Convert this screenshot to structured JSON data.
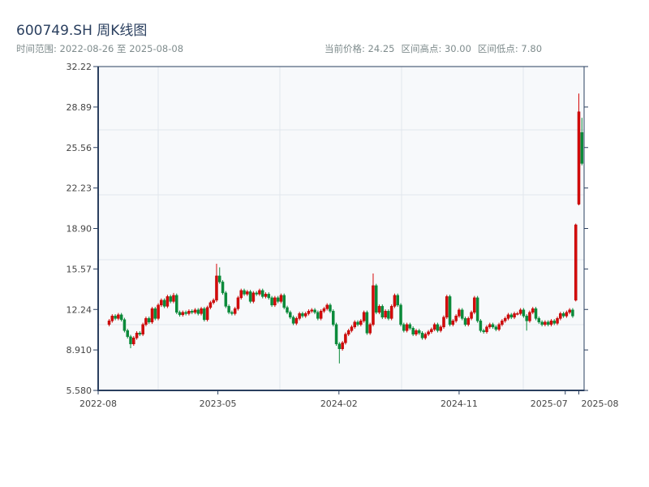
{
  "header": {
    "title": "600749.SH 周K线图",
    "range_label": "时间范围: ",
    "range_start": "2022-08-26",
    "range_sep": " 至 ",
    "range_end": "2025-08-08",
    "current_price": "当前价格: 24.25",
    "range_high": "区间高点: 30.00",
    "range_low": "区间低点: 7.80"
  },
  "chart_data": {
    "type": "candlestick",
    "title": "600749.SH 周K线图",
    "frequency": "weekly",
    "x_range": [
      "2022-08-26",
      "2025-08-08"
    ],
    "ylim": [
      5.58,
      32.22
    ],
    "y_ticks": [
      "5.580",
      "8.910",
      "12.24",
      "15.57",
      "18.90",
      "22.23",
      "25.56",
      "28.89",
      "32.22"
    ],
    "x_ticks": [
      "2022-08",
      "2023-05",
      "2024-02",
      "2024-11",
      "2025-07",
      "2025-08"
    ],
    "x_tick_dates": [
      "2022-08-01",
      "2023-05-01",
      "2024-02-01",
      "2024-11-01",
      "2025-07-01",
      "2025-08-01"
    ],
    "grid": true,
    "colors": {
      "up": "#d60a0a",
      "down": "#0b8a3a",
      "axis": "#2a3f5f",
      "grid": "#e2e6ec",
      "plot_bg": "#f7f9fb"
    },
    "ohlc_columns": [
      "open",
      "high",
      "low",
      "close"
    ],
    "candles": [
      [
        11.0,
        11.45,
        10.85,
        11.3
      ],
      [
        11.3,
        11.85,
        11.15,
        11.7
      ],
      [
        11.7,
        11.85,
        11.35,
        11.5
      ],
      [
        11.5,
        11.95,
        11.35,
        11.8
      ],
      [
        11.8,
        11.95,
        11.25,
        11.4
      ],
      [
        11.4,
        11.55,
        10.35,
        10.5
      ],
      [
        10.5,
        10.65,
        9.85,
        10.0
      ],
      [
        10.0,
        10.15,
        9.05,
        9.4
      ],
      [
        9.4,
        10.05,
        9.25,
        9.9
      ],
      [
        9.9,
        10.45,
        9.75,
        10.3
      ],
      [
        10.3,
        10.45,
        10.05,
        10.2
      ],
      [
        10.2,
        11.15,
        10.05,
        11.0
      ],
      [
        11.0,
        11.65,
        10.85,
        11.5
      ],
      [
        11.5,
        11.65,
        11.05,
        11.2
      ],
      [
        11.2,
        12.45,
        11.05,
        12.3
      ],
      [
        12.3,
        12.45,
        11.35,
        11.5
      ],
      [
        11.5,
        12.75,
        11.35,
        12.6
      ],
      [
        12.6,
        13.15,
        12.45,
        13.0
      ],
      [
        13.0,
        13.15,
        12.35,
        12.5
      ],
      [
        12.5,
        13.45,
        12.35,
        13.3
      ],
      [
        13.3,
        13.45,
        12.75,
        12.9
      ],
      [
        12.9,
        13.6,
        12.75,
        13.4
      ],
      [
        13.4,
        13.55,
        11.85,
        12.0
      ],
      [
        12.0,
        12.15,
        11.65,
        11.8
      ],
      [
        11.8,
        12.15,
        11.65,
        12.0
      ],
      [
        12.0,
        12.15,
        11.75,
        11.9
      ],
      [
        11.9,
        12.25,
        11.75,
        12.1
      ],
      [
        12.1,
        12.25,
        11.85,
        12.0
      ],
      [
        12.0,
        12.35,
        11.85,
        12.2
      ],
      [
        12.2,
        12.35,
        11.75,
        11.9
      ],
      [
        11.9,
        12.45,
        11.75,
        12.3
      ],
      [
        12.3,
        12.45,
        11.25,
        11.4
      ],
      [
        11.4,
        12.55,
        11.25,
        12.4
      ],
      [
        12.4,
        12.95,
        12.25,
        12.8
      ],
      [
        12.8,
        13.15,
        12.65,
        13.0
      ],
      [
        13.0,
        16.0,
        12.85,
        15.0
      ],
      [
        15.0,
        15.7,
        14.35,
        14.5
      ],
      [
        14.5,
        14.65,
        13.45,
        13.6
      ],
      [
        13.6,
        13.75,
        12.35,
        12.5
      ],
      [
        12.5,
        12.65,
        11.85,
        12.0
      ],
      [
        12.0,
        12.15,
        11.75,
        11.9
      ],
      [
        11.9,
        12.45,
        11.75,
        12.3
      ],
      [
        12.3,
        13.35,
        12.15,
        13.2
      ],
      [
        13.2,
        13.95,
        13.05,
        13.8
      ],
      [
        13.8,
        13.95,
        13.35,
        13.5
      ],
      [
        13.5,
        13.85,
        13.35,
        13.7
      ],
      [
        13.7,
        13.85,
        12.75,
        12.9
      ],
      [
        12.9,
        13.75,
        12.75,
        13.6
      ],
      [
        13.6,
        13.75,
        13.35,
        13.5
      ],
      [
        13.5,
        13.95,
        13.35,
        13.8
      ],
      [
        13.8,
        13.95,
        13.15,
        13.3
      ],
      [
        13.3,
        13.65,
        13.15,
        13.5
      ],
      [
        13.5,
        13.65,
        13.05,
        13.2
      ],
      [
        13.2,
        13.35,
        12.45,
        12.6
      ],
      [
        12.6,
        13.35,
        12.45,
        13.2
      ],
      [
        13.2,
        13.35,
        12.75,
        12.9
      ],
      [
        12.9,
        13.55,
        12.75,
        13.4
      ],
      [
        13.4,
        13.55,
        12.25,
        12.4
      ],
      [
        12.4,
        12.55,
        11.85,
        12.0
      ],
      [
        12.0,
        12.15,
        11.45,
        11.6
      ],
      [
        11.6,
        11.75,
        10.95,
        11.1
      ],
      [
        11.1,
        11.65,
        10.95,
        11.5
      ],
      [
        11.5,
        12.05,
        11.35,
        11.9
      ],
      [
        11.9,
        12.05,
        11.55,
        11.7
      ],
      [
        11.7,
        12.05,
        11.55,
        11.9
      ],
      [
        11.9,
        12.25,
        11.75,
        12.1
      ],
      [
        12.1,
        12.35,
        11.95,
        12.2
      ],
      [
        12.2,
        12.35,
        11.85,
        12.0
      ],
      [
        12.0,
        12.15,
        11.35,
        11.5
      ],
      [
        11.5,
        12.25,
        11.35,
        12.1
      ],
      [
        12.1,
        12.45,
        11.95,
        12.3
      ],
      [
        12.3,
        12.75,
        12.15,
        12.6
      ],
      [
        12.6,
        12.75,
        11.95,
        12.1
      ],
      [
        12.1,
        12.25,
        10.85,
        11.0
      ],
      [
        11.0,
        11.15,
        9.25,
        9.4
      ],
      [
        9.4,
        9.55,
        7.8,
        9.0
      ],
      [
        9.0,
        9.65,
        8.85,
        9.5
      ],
      [
        9.5,
        10.35,
        9.35,
        10.2
      ],
      [
        10.2,
        10.65,
        10.05,
        10.5
      ],
      [
        10.5,
        10.95,
        10.35,
        10.8
      ],
      [
        10.8,
        11.35,
        10.65,
        11.2
      ],
      [
        11.2,
        11.35,
        10.85,
        11.0
      ],
      [
        11.0,
        11.45,
        10.85,
        11.3
      ],
      [
        11.3,
        12.15,
        11.15,
        12.0
      ],
      [
        12.0,
        12.15,
        10.15,
        10.3
      ],
      [
        10.3,
        11.15,
        10.15,
        11.0
      ],
      [
        11.0,
        15.2,
        10.85,
        14.2
      ],
      [
        14.2,
        14.35,
        11.85,
        12.0
      ],
      [
        12.0,
        12.65,
        11.85,
        12.5
      ],
      [
        12.5,
        12.65,
        11.45,
        11.6
      ],
      [
        11.6,
        12.25,
        11.45,
        12.1
      ],
      [
        12.1,
        12.25,
        11.35,
        11.5
      ],
      [
        11.5,
        12.65,
        11.35,
        12.5
      ],
      [
        12.5,
        13.55,
        12.35,
        13.4
      ],
      [
        13.4,
        13.55,
        12.45,
        12.6
      ],
      [
        12.6,
        12.75,
        10.85,
        11.0
      ],
      [
        11.0,
        11.15,
        10.35,
        10.5
      ],
      [
        10.5,
        11.15,
        10.35,
        11.0
      ],
      [
        11.0,
        11.15,
        10.55,
        10.7
      ],
      [
        10.7,
        10.85,
        10.05,
        10.2
      ],
      [
        10.2,
        10.65,
        10.05,
        10.5
      ],
      [
        10.5,
        10.65,
        10.15,
        10.3
      ],
      [
        10.3,
        10.45,
        9.75,
        9.9
      ],
      [
        9.9,
        10.35,
        9.75,
        10.2
      ],
      [
        10.2,
        10.55,
        10.05,
        10.4
      ],
      [
        10.4,
        10.75,
        10.25,
        10.6
      ],
      [
        10.6,
        11.15,
        10.45,
        11.0
      ],
      [
        11.0,
        11.15,
        10.35,
        10.5
      ],
      [
        10.5,
        10.95,
        10.35,
        10.8
      ],
      [
        10.8,
        11.75,
        10.65,
        11.6
      ],
      [
        11.6,
        13.45,
        11.45,
        13.3
      ],
      [
        13.3,
        13.45,
        10.85,
        11.0
      ],
      [
        11.0,
        11.45,
        10.85,
        11.3
      ],
      [
        11.3,
        11.85,
        11.15,
        11.7
      ],
      [
        11.7,
        12.35,
        11.55,
        12.2
      ],
      [
        12.2,
        12.35,
        11.35,
        11.5
      ],
      [
        11.5,
        11.65,
        10.85,
        11.0
      ],
      [
        11.0,
        11.65,
        10.85,
        11.5
      ],
      [
        11.5,
        12.15,
        11.35,
        12.0
      ],
      [
        12.0,
        13.35,
        11.85,
        13.2
      ],
      [
        13.2,
        13.35,
        11.15,
        11.3
      ],
      [
        11.3,
        11.45,
        10.35,
        10.5
      ],
      [
        10.5,
        10.65,
        10.25,
        10.4
      ],
      [
        10.4,
        10.95,
        10.25,
        10.8
      ],
      [
        10.8,
        11.15,
        10.65,
        11.0
      ],
      [
        11.0,
        11.15,
        10.65,
        10.8
      ],
      [
        10.8,
        10.95,
        10.45,
        10.6
      ],
      [
        10.6,
        11.15,
        10.45,
        11.0
      ],
      [
        11.0,
        11.45,
        10.85,
        11.3
      ],
      [
        11.3,
        11.65,
        11.15,
        11.5
      ],
      [
        11.5,
        11.95,
        11.35,
        11.8
      ],
      [
        11.8,
        11.95,
        11.45,
        11.6
      ],
      [
        11.6,
        12.05,
        11.45,
        11.9
      ],
      [
        11.9,
        12.05,
        11.75,
        11.9
      ],
      [
        11.9,
        12.35,
        11.75,
        12.2
      ],
      [
        12.2,
        12.35,
        11.55,
        11.7
      ],
      [
        11.7,
        11.85,
        10.5,
        11.3
      ],
      [
        11.3,
        12.15,
        11.15,
        12.0
      ],
      [
        12.0,
        12.45,
        11.85,
        12.3
      ],
      [
        12.3,
        12.45,
        11.35,
        11.5
      ],
      [
        11.5,
        11.65,
        11.05,
        11.2
      ],
      [
        11.2,
        11.35,
        10.85,
        11.0
      ],
      [
        11.0,
        11.35,
        10.85,
        11.2
      ],
      [
        11.2,
        11.35,
        10.85,
        11.0
      ],
      [
        11.0,
        11.45,
        10.85,
        11.3
      ],
      [
        11.3,
        11.45,
        10.95,
        11.1
      ],
      [
        11.1,
        11.65,
        10.95,
        11.5
      ],
      [
        11.5,
        12.05,
        11.35,
        11.9
      ],
      [
        11.9,
        12.05,
        11.55,
        11.7
      ],
      [
        11.7,
        12.15,
        11.55,
        12.0
      ],
      [
        12.0,
        12.35,
        11.85,
        12.2
      ],
      [
        12.2,
        12.35,
        11.55,
        11.7
      ],
      [
        13.0,
        19.3,
        12.9,
        19.2
      ],
      [
        20.9,
        30.0,
        20.8,
        28.5
      ],
      [
        26.8,
        28.0,
        24.1,
        24.25
      ]
    ]
  }
}
